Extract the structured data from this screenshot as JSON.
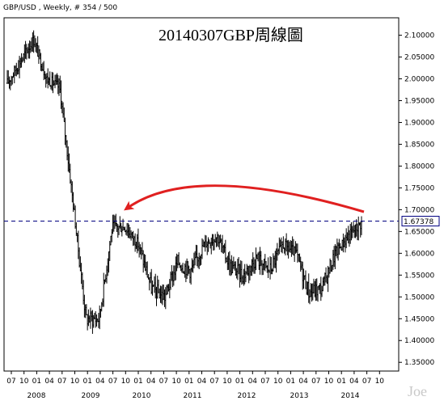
{
  "header": {
    "text": "GBP/USD , Weekly, # 354 / 500"
  },
  "watermark": "Joe",
  "chart_data": {
    "type": "line",
    "style": "ohlc-bars",
    "symbol": "GBP/USD",
    "timeframe": "Weekly",
    "title": "20140307GBP周線圖",
    "ylim": [
      1.33,
      2.14
    ],
    "yticks": [
      "2.10000",
      "2.05000",
      "2.00000",
      "1.95000",
      "1.90000",
      "1.85000",
      "1.80000",
      "1.75000",
      "1.70000",
      "1.65000",
      "1.60000",
      "1.55000",
      "1.50000",
      "1.45000",
      "1.40000",
      "1.35000"
    ],
    "month_ticks": [
      "07",
      "10",
      "01",
      "04",
      "07",
      "10",
      "01",
      "04",
      "07",
      "10",
      "01",
      "04",
      "07",
      "10",
      "01",
      "04",
      "07",
      "10",
      "01",
      "04",
      "07",
      "10",
      "01",
      "04",
      "07",
      "10",
      "01",
      "04",
      "07",
      "10"
    ],
    "year_labels": [
      "2008",
      "2009",
      "2010",
      "2011",
      "2012",
      "2013",
      "2014"
    ],
    "current_price": "1.67378",
    "current_price_value": 1.67378,
    "colors": {
      "bars": "#000000",
      "price_line": "#000080",
      "arrow": "#e02020",
      "price_label_border": "#000080"
    },
    "x": [
      "2007-07",
      "2007-10",
      "2008-01",
      "2008-04",
      "2008-07",
      "2008-10",
      "2009-01",
      "2009-04",
      "2009-07",
      "2009-10",
      "2010-01",
      "2010-04",
      "2010-07",
      "2010-10",
      "2011-01",
      "2011-04",
      "2011-07",
      "2011-10",
      "2012-01",
      "2012-04",
      "2012-07",
      "2012-10",
      "2013-01",
      "2013-04",
      "2013-07",
      "2013-10",
      "2014-01",
      "2014-03"
    ],
    "series": [
      {
        "values": [
          1.99,
          2.04,
          2.09,
          2.0,
          1.98,
          1.72,
          1.45,
          1.45,
          1.66,
          1.66,
          1.62,
          1.52,
          1.5,
          1.58,
          1.56,
          1.62,
          1.64,
          1.57,
          1.55,
          1.59,
          1.56,
          1.62,
          1.6,
          1.51,
          1.52,
          1.6,
          1.64,
          1.67
        ]
      }
    ],
    "annotation": "curved arrow from current price back to the 2009 high"
  }
}
